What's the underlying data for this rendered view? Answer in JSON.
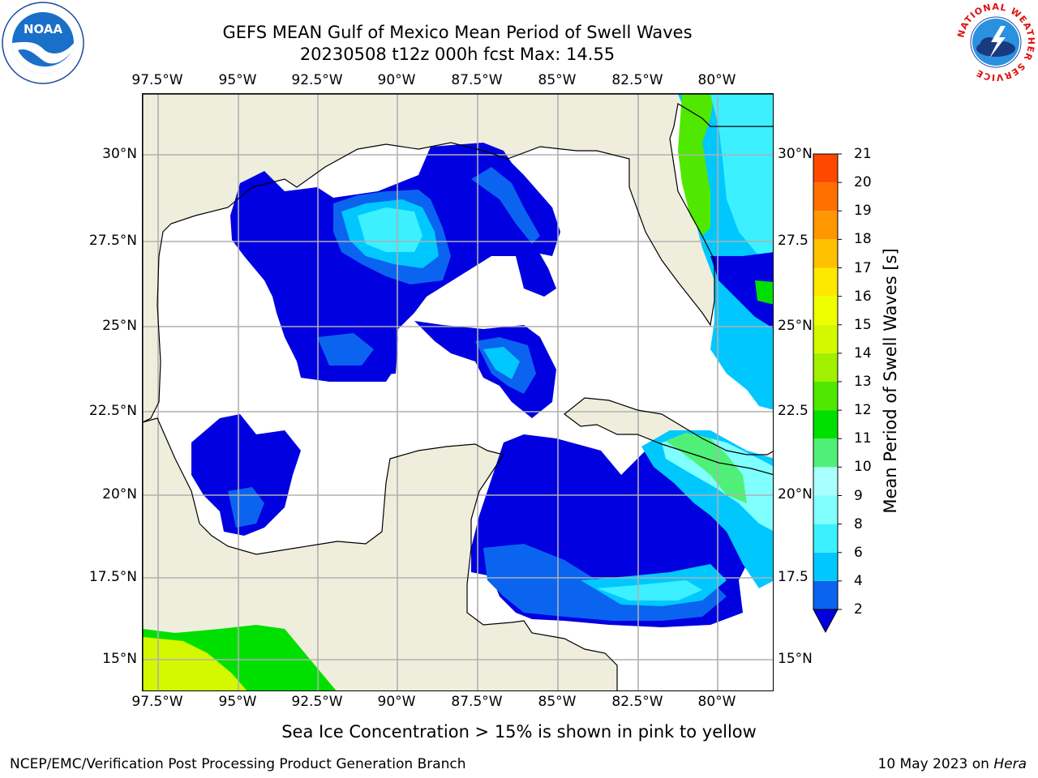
{
  "header": {
    "title_line1": "GEFS MEAN Gulf of Mexico Mean Period of Swell Waves",
    "title_line2": "20230508 t12z 000h fcst   Max: 14.55"
  },
  "map": {
    "lon_ticks": [
      "97.5°W",
      "95°W",
      "92.5°W",
      "90°W",
      "87.5°W",
      "85°W",
      "82.5°W",
      "80°W"
    ],
    "lat_ticks_left": [
      "30°N",
      "27.5°N",
      "25°N",
      "22.5°N",
      "20°N",
      "17.5°N",
      "15°N"
    ],
    "lat_ticks_right": [
      "30°N",
      "27.5",
      "25°N",
      "22.5",
      "20°N",
      "17.5",
      "15°N"
    ],
    "land_color": "#efeedd",
    "grid_color": "#b0b0b0"
  },
  "colorbar": {
    "label": "Mean Period of Swell Waves [s]",
    "ticks": [
      "2",
      "4",
      "6",
      "8",
      "9",
      "10",
      "11",
      "12",
      "13",
      "14",
      "15",
      "16",
      "17",
      "18",
      "19",
      "20",
      "21"
    ],
    "colors": [
      "#0a64f0",
      "#00c8ff",
      "#3cf0ff",
      "#80ffff",
      "#aaffff",
      "#50f078",
      "#00e000",
      "#50e800",
      "#a0f000",
      "#d4f800",
      "#f0ff00",
      "#ffe800",
      "#ffc000",
      "#ff9800",
      "#ff7000",
      "#ff4800",
      "#ff1000"
    ],
    "extend_color": "#0000e0"
  },
  "note": "Sea Ice Concentration > 15% is shown in pink to yellow",
  "footer": {
    "left": "NCEP/EMC/Verification Post Processing Product Generation Branch",
    "date": "10 May 2023 on",
    "machine": "Hera"
  },
  "logos": {
    "noaa_text": "NOAA",
    "nws_ring_text": "NATIONAL WEATHER SERVICE"
  }
}
